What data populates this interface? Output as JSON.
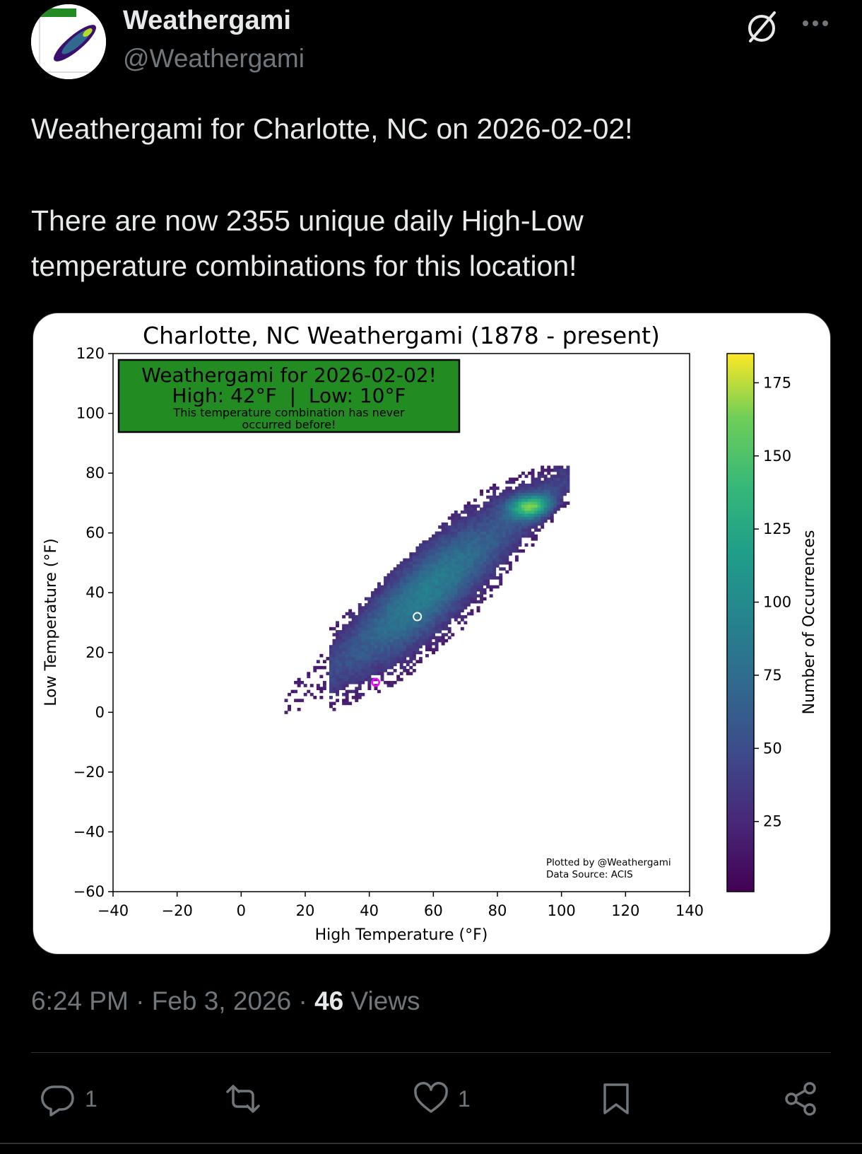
{
  "author": {
    "name": "Weathergami",
    "handle": "@Weathergami"
  },
  "tweet": {
    "line1": "Weathergami for Charlotte, NC on 2026-02-02!",
    "line2": "There are now 2355 unique daily High-Low",
    "line3": "temperature combinations for this location!"
  },
  "meta": {
    "time": "6:24 PM",
    "sep": "·",
    "date": "Feb 3, 2026",
    "views_count": "46",
    "views_label": "Views"
  },
  "actions": {
    "reply_count": "1",
    "like_count": "1"
  },
  "icons": [
    "grok-icon",
    "more-icon",
    "reply-icon",
    "repost-icon",
    "like-icon",
    "bookmark-icon",
    "share-icon"
  ],
  "colors": {
    "background": "#000000",
    "text": "#e7e9ea",
    "muted": "#71767b",
    "annotation_box": "#228b22",
    "marker_today": "#ff00ff",
    "marker_center": "#ffffff"
  },
  "chart_data": {
    "type": "heatmap",
    "title": "Charlotte, NC Weathergami (1878 - present)",
    "xlabel": "High Temperature (°F)",
    "ylabel": "Low Temperature (°F)",
    "xlim": [
      -40,
      140
    ],
    "ylim": [
      -60,
      120
    ],
    "xticks": [
      "−40",
      "−20",
      "0",
      "20",
      "40",
      "60",
      "80",
      "100",
      "120",
      "140"
    ],
    "yticks": [
      "−60",
      "−40",
      "−20",
      "0",
      "20",
      "40",
      "60",
      "80",
      "100",
      "120"
    ],
    "colorbar": {
      "label": "Number of Occurrences",
      "ticks": [
        "25",
        "50",
        "75",
        "100",
        "125",
        "150",
        "175"
      ],
      "range": [
        1,
        185
      ],
      "colormap": "viridis"
    },
    "annotation": {
      "line1": "Weathergami for 2026-02-02!",
      "line2": "High: 42°F  |  Low: 10°F",
      "line3": "This temperature combination has never",
      "line4": "occurred before!"
    },
    "credit": {
      "line1": "Plotted by @Weathergami",
      "line2": "Data Source: ACIS"
    },
    "highlight_point": {
      "high": 42,
      "low": 10
    },
    "center_point": {
      "high": 55,
      "low": 32
    },
    "density_peak": {
      "high": 90,
      "low": 69
    },
    "distribution": {
      "high_min": 14,
      "high_max": 102,
      "low_min": -5,
      "low_max": 82
    }
  }
}
